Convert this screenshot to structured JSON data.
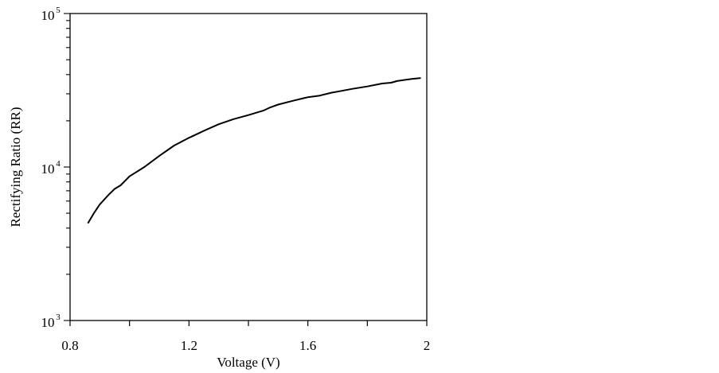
{
  "chart_data": {
    "type": "line",
    "title": "",
    "xlabel": "Voltage (V)",
    "ylabel": "Rectifying Ratio (RR)",
    "xlim": [
      0.8,
      2.0
    ],
    "ylim": [
      1000,
      100000
    ],
    "yscale": "log",
    "grid": false,
    "x_ticks": [
      0.8,
      1.0,
      1.2,
      1.4,
      1.6,
      1.8,
      2.0
    ],
    "x_tick_labels": [
      {
        "value": 0.8,
        "label": "0.8"
      },
      {
        "value": 1.2,
        "label": "1.2"
      },
      {
        "value": 1.6,
        "label": "1.6"
      },
      {
        "value": 2.0,
        "label": "2"
      }
    ],
    "y_tick_labels": [
      {
        "value": 1000,
        "base": "10",
        "exp": "3"
      },
      {
        "value": 10000,
        "base": "10",
        "exp": "4"
      },
      {
        "value": 100000,
        "base": "10",
        "exp": "5"
      }
    ],
    "series": [
      {
        "name": "RR",
        "color": "#000000",
        "x": [
          0.86,
          0.88,
          0.9,
          0.93,
          0.95,
          0.97,
          1.0,
          1.05,
          1.1,
          1.15,
          1.2,
          1.25,
          1.3,
          1.35,
          1.4,
          1.45,
          1.47,
          1.5,
          1.55,
          1.6,
          1.64,
          1.68,
          1.7,
          1.75,
          1.8,
          1.85,
          1.88,
          1.9,
          1.95,
          1.98
        ],
        "y": [
          4300,
          5000,
          5700,
          6600,
          7200,
          7600,
          8700,
          10000,
          11800,
          13800,
          15500,
          17200,
          19000,
          20500,
          21800,
          23300,
          24300,
          25500,
          27000,
          28500,
          29200,
          30500,
          31000,
          32300,
          33500,
          35000,
          35400,
          36300,
          37500,
          38000
        ]
      }
    ]
  }
}
